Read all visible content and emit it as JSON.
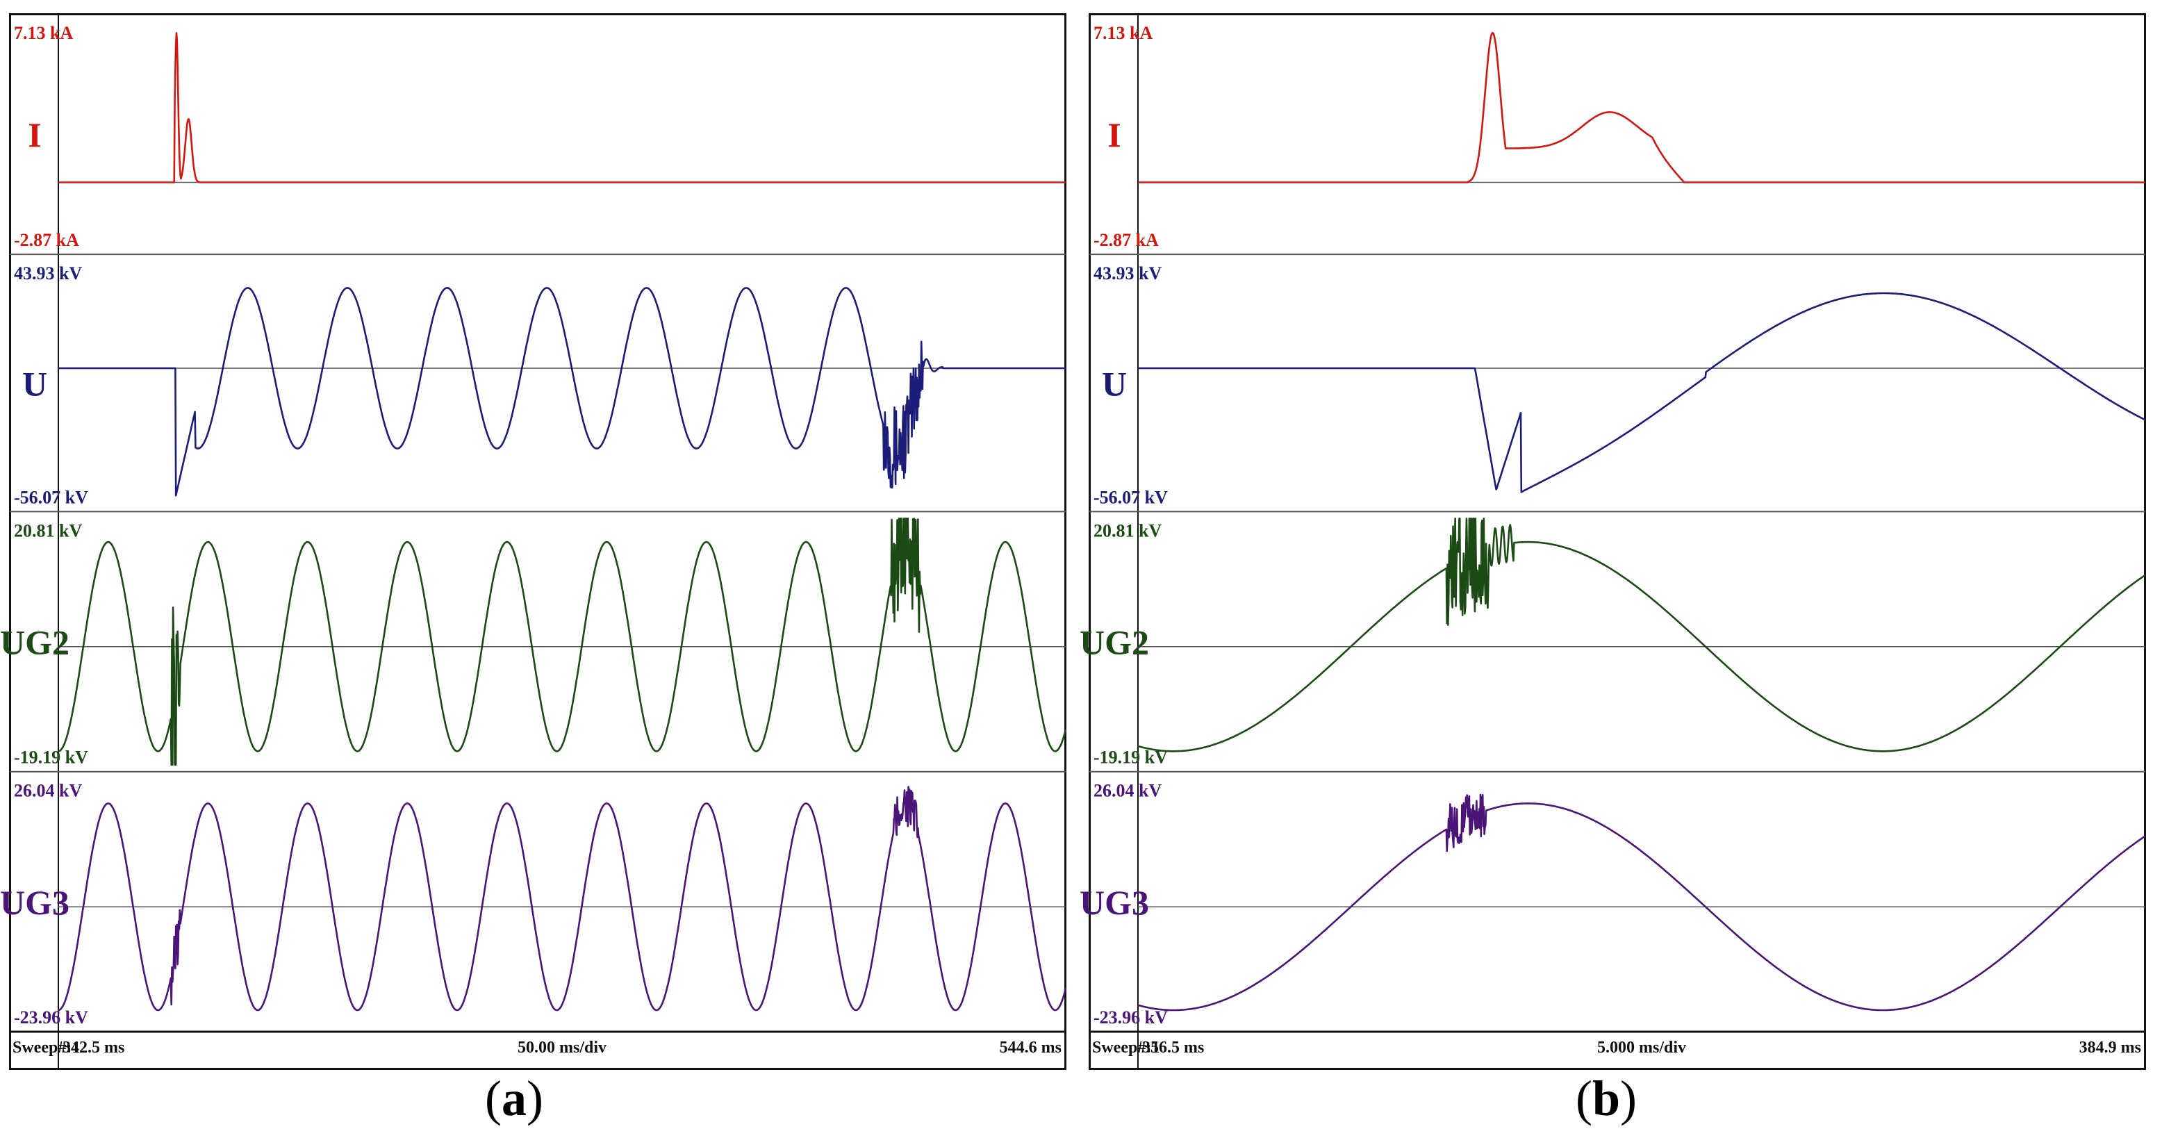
{
  "figure": {
    "caption_a": "a",
    "caption_b": "b",
    "caption_open": "(",
    "caption_close": ")"
  },
  "colors": {
    "I": "#d3170f",
    "U": "#1c1c7a",
    "UG2": "#1b4a14",
    "UG3": "#4a1478",
    "frame": "#111111",
    "grid": "#555555"
  },
  "chart_data": [
    {
      "type": "line",
      "panel": "a",
      "title": "(a)",
      "sweep_label": "Sweep#:1",
      "x_start": "342.5 ms",
      "x_div": "50.00 ms/div",
      "x_end": "544.6 ms",
      "xlim": [
        342.5,
        544.6
      ],
      "series": [
        {
          "name": "I",
          "top": "7.13 kA",
          "bottom": "-2.87 kA",
          "ylim": [
            -2.87,
            7.13
          ],
          "unit": "kA",
          "description": "flat at 0 with a sharp spike to ~6.6 kA near 366 ms and a smaller hump ~2.8 kA; returns to 0 by ~370 ms"
        },
        {
          "name": "U",
          "top": "43.93 kV",
          "bottom": "-56.07 kV",
          "ylim": [
            -56.07,
            43.93
          ],
          "unit": "kV",
          "description": "flat at 0 until ~366 ms, negative spike to ~-53 kV, then 50 Hz sine ~±33 kV, noisy burst near 511 ms, flat at 0 after ~516 ms"
        },
        {
          "name": "UG2",
          "top": "20.81 kV",
          "bottom": "-19.19 kV",
          "ylim": [
            -19.19,
            20.81
          ],
          "unit": "kV",
          "description": "50 Hz sine ~±17 kV throughout, with noisy spikes near 366 ms and 513 ms"
        },
        {
          "name": "UG3",
          "top": "26.04 kV",
          "bottom": "-23.96 kV",
          "ylim": [
            -23.96,
            26.04
          ],
          "unit": "kV",
          "description": "50 Hz sine ~±21 kV throughout, with small bursts near 366 ms and 513 ms"
        }
      ]
    },
    {
      "type": "line",
      "panel": "b",
      "title": "(b)",
      "sweep_label": "Sweep#:1",
      "x_start": "356.5 ms",
      "x_div": "5.000 ms/div",
      "x_end": "384.9 ms",
      "xlim": [
        356.5,
        384.9
      ],
      "series": [
        {
          "name": "I",
          "top": "7.13 kA",
          "bottom": "-2.87 kA",
          "ylim": [
            -2.87,
            7.13
          ],
          "unit": "kA",
          "description": "0 until ~365.9 ms, sharp rise to ~6.6 kA at ~366.5 ms, drop to ~1.5 kA, broad hump ~3.1 kA near 369.8 ms, back to 0 at ~371.9 ms"
        },
        {
          "name": "U",
          "top": "43.93 kV",
          "bottom": "-56.07 kV",
          "ylim": [
            -56.07,
            43.93
          ],
          "unit": "kV",
          "description": "0 until ~366 ms, dip to ~-50 kV near 366.6 ms, then recovering rise to ~+31 kV peak near 377.5 ms and falling to ~-22 kV at 384.9 ms"
        },
        {
          "name": "UG2",
          "top": "20.81 kV",
          "bottom": "-19.19 kV",
          "ylim": [
            -19.19,
            20.81
          ],
          "unit": "kV",
          "description": "sine starting ~-17 kV, rising to ~+18 kV peak near 367.5 ms (noisy at 366 ms), minimum ~-17 kV near 377.5 ms, rising to ~+10 kV at end"
        },
        {
          "name": "UG3",
          "top": "26.04 kV",
          "bottom": "-23.96 kV",
          "ylim": [
            -23.96,
            26.04
          ],
          "unit": "kV",
          "description": "sine starting ~-21 kV, peak ~+22 kV near 367.5 ms (noisy at 366 ms), minimum ~-21 kV near 377.5 ms, rising to ~+12 kV at end"
        }
      ]
    }
  ]
}
